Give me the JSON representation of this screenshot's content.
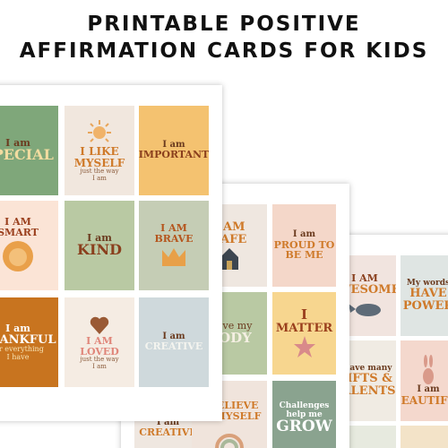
{
  "title": [
    "PRINTABLE POSITIVE",
    "AFFIRMATION CARDS FOR KIDS"
  ],
  "sheets": [
    {
      "cards": [
        [
          "I am",
          "SPECIAL"
        ],
        [
          "I LIKE",
          "MYSELF",
          "just the way",
          "I am"
        ],
        [
          "I am",
          "IMPORTANT"
        ],
        [
          "I AM",
          "SMART"
        ],
        [
          "I am",
          "KIND"
        ],
        [
          "I AM",
          "BRAVE"
        ],
        [
          "I am",
          "THANKFUL",
          "for everything",
          "I have"
        ],
        [
          "I AM",
          "LOVED",
          "just the way",
          "I am"
        ],
        [
          "I am",
          "CREATIVE"
        ]
      ]
    },
    {
      "cards": [
        [
          "I AM",
          "SAFE"
        ],
        [
          "I am",
          "PROUD TO",
          "BE ME"
        ],
        [
          "I love my",
          "BODY"
        ],
        [
          "I",
          "MATTER"
        ],
        [
          "I am",
          "CREATIVE"
        ],
        [
          "I BELIEVE",
          "IN MYSELF"
        ],
        [
          "Challenges",
          "help me",
          "GROW"
        ]
      ]
    },
    {
      "cards": [
        [
          "I AM",
          "AWESOME"
        ],
        [
          "My words",
          "HAVE",
          "POWER"
        ],
        [
          "I have many",
          "GIFTS &",
          "TALENTS"
        ],
        [
          "I am",
          "BEAUTIFUL"
        ]
      ]
    }
  ]
}
